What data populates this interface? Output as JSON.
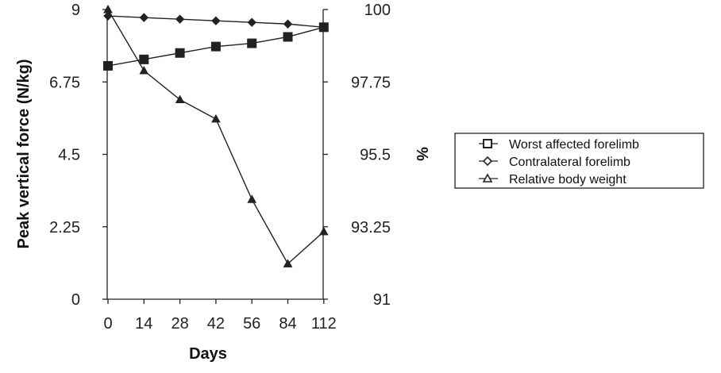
{
  "chart_data": {
    "type": "line",
    "title": "",
    "xlabel": "Days",
    "ylabel": "Peak vertical force (N/kg)",
    "y2label": "%",
    "x": [
      0,
      14,
      28,
      42,
      56,
      84,
      112
    ],
    "x_tick_labels": [
      "0",
      "14",
      "28",
      "42",
      "56",
      "84",
      "112"
    ],
    "x_scale": "categorical-equal-spacing",
    "ylim": [
      0,
      9
    ],
    "y_ticks": [
      "0",
      "2.25",
      "4.5",
      "6.75",
      "9"
    ],
    "y2lim": [
      91,
      100
    ],
    "y2_ticks": [
      "91",
      "93.25",
      "95.5",
      "97.75",
      "100"
    ],
    "grid": false,
    "legend_position": "right",
    "series": [
      {
        "name": "Worst affected forelimb",
        "axis": "left",
        "marker": "filled-square",
        "values": [
          7.25,
          7.45,
          7.65,
          7.85,
          7.95,
          8.15,
          8.45
        ]
      },
      {
        "name": "Contralateral forelimb",
        "axis": "left",
        "marker": "filled-diamond",
        "values": [
          8.8,
          8.75,
          8.7,
          8.65,
          8.6,
          8.55,
          8.45
        ]
      },
      {
        "name": "Relative body weight",
        "axis": "right",
        "marker": "filled-triangle",
        "values": [
          100,
          98.1,
          97.2,
          96.6,
          94.1,
          92.1,
          93.1
        ]
      }
    ],
    "legend_marker_names": [
      "legend-square-marker",
      "legend-diamond-marker",
      "legend-triangle-marker"
    ]
  }
}
